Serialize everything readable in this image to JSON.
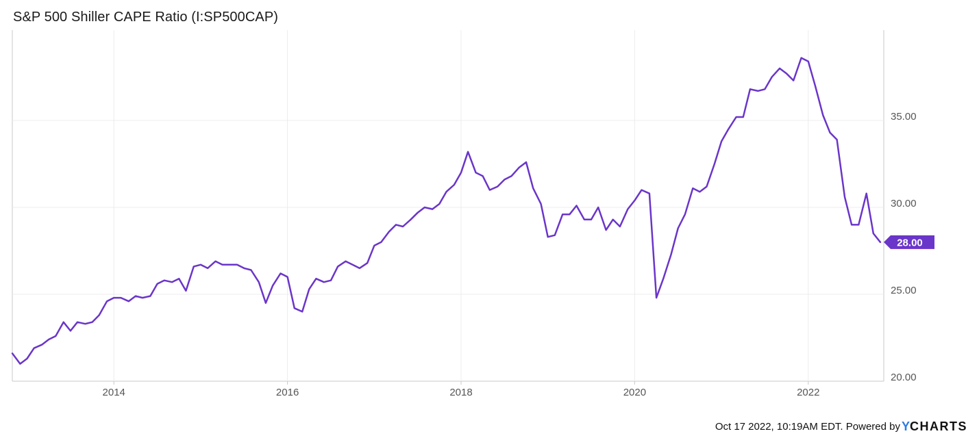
{
  "chart_data": {
    "type": "line",
    "title": "S&P 500 Shiller CAPE Ratio (I:SP500CAP)",
    "xlabel": "",
    "ylabel": "",
    "x_ticks": [
      "2014",
      "2016",
      "2018",
      "2020",
      "2022"
    ],
    "y_ticks": [
      "20.00",
      "25.00",
      "30.00",
      "35.00"
    ],
    "xlim": [
      2012.83,
      2022.87
    ],
    "ylim": [
      20,
      40.2
    ],
    "grid": true,
    "line_color": "#6a35c9",
    "last_value_label": "28.00",
    "series": [
      {
        "x": [
          2012.83,
          2012.92,
          2013.0,
          2013.08,
          2013.17,
          2013.25,
          2013.33,
          2013.42,
          2013.5,
          2013.58,
          2013.67,
          2013.75,
          2013.83,
          2013.92,
          2014.0,
          2014.08,
          2014.17,
          2014.25,
          2014.33,
          2014.42,
          2014.5,
          2014.58,
          2014.67,
          2014.75,
          2014.83,
          2014.92,
          2015.0,
          2015.08,
          2015.17,
          2015.25,
          2015.33,
          2015.42,
          2015.5,
          2015.58,
          2015.67,
          2015.75,
          2015.83,
          2015.92,
          2016.0,
          2016.08,
          2016.17,
          2016.25,
          2016.33,
          2016.42,
          2016.5,
          2016.58,
          2016.67,
          2016.75,
          2016.83,
          2016.92,
          2017.0,
          2017.08,
          2017.17,
          2017.25,
          2017.33,
          2017.42,
          2017.5,
          2017.58,
          2017.67,
          2017.75,
          2017.83,
          2017.92,
          2018.0,
          2018.08,
          2018.17,
          2018.25,
          2018.33,
          2018.42,
          2018.5,
          2018.58,
          2018.67,
          2018.75,
          2018.83,
          2018.92,
          2019.0,
          2019.08,
          2019.17,
          2019.25,
          2019.33,
          2019.42,
          2019.5,
          2019.58,
          2019.67,
          2019.75,
          2019.83,
          2019.92,
          2020.0,
          2020.08,
          2020.17,
          2020.25,
          2020.33,
          2020.42,
          2020.5,
          2020.58,
          2020.67,
          2020.75,
          2020.83,
          2020.92,
          2021.0,
          2021.08,
          2021.17,
          2021.25,
          2021.33,
          2021.42,
          2021.5,
          2021.58,
          2021.67,
          2021.75,
          2021.83,
          2021.92,
          2022.0,
          2022.08,
          2022.17,
          2022.25,
          2022.33,
          2022.42,
          2022.5,
          2022.58,
          2022.67,
          2022.75,
          2022.83
        ],
        "values": [
          21.6,
          21.0,
          21.3,
          21.9,
          22.1,
          22.4,
          22.6,
          23.4,
          22.9,
          23.4,
          23.3,
          23.4,
          23.8,
          24.6,
          24.8,
          24.8,
          24.6,
          24.9,
          24.8,
          24.9,
          25.6,
          25.8,
          25.7,
          25.9,
          25.2,
          26.6,
          26.7,
          26.5,
          26.9,
          26.7,
          26.7,
          26.7,
          26.5,
          26.4,
          25.7,
          24.5,
          25.5,
          26.2,
          26.0,
          24.2,
          24.0,
          25.3,
          25.9,
          25.7,
          25.8,
          26.6,
          26.9,
          26.7,
          26.5,
          26.8,
          27.8,
          28.0,
          28.6,
          29.0,
          28.9,
          29.3,
          29.7,
          30.0,
          29.9,
          30.2,
          30.9,
          31.3,
          32.0,
          33.2,
          32.0,
          31.8,
          31.0,
          31.2,
          31.6,
          31.8,
          32.3,
          32.6,
          31.1,
          30.2,
          28.3,
          28.4,
          29.6,
          29.6,
          30.1,
          29.3,
          29.3,
          30.0,
          28.7,
          29.3,
          28.9,
          29.9,
          30.4,
          31.0,
          30.8,
          24.8,
          25.9,
          27.3,
          28.8,
          29.6,
          31.1,
          30.9,
          31.2,
          32.5,
          33.8,
          34.5,
          35.2,
          35.2,
          36.8,
          36.7,
          36.8,
          37.5,
          38.0,
          37.7,
          37.3,
          38.6,
          38.4,
          37.0,
          35.3,
          34.3,
          33.9,
          30.6,
          29.0,
          29.0,
          30.8,
          28.5,
          28.0
        ]
      }
    ]
  },
  "footer": {
    "text": "Oct 17 2022, 10:19AM EDT.  Powered by",
    "logo_y": "Y",
    "logo_rest": "CHARTS"
  }
}
